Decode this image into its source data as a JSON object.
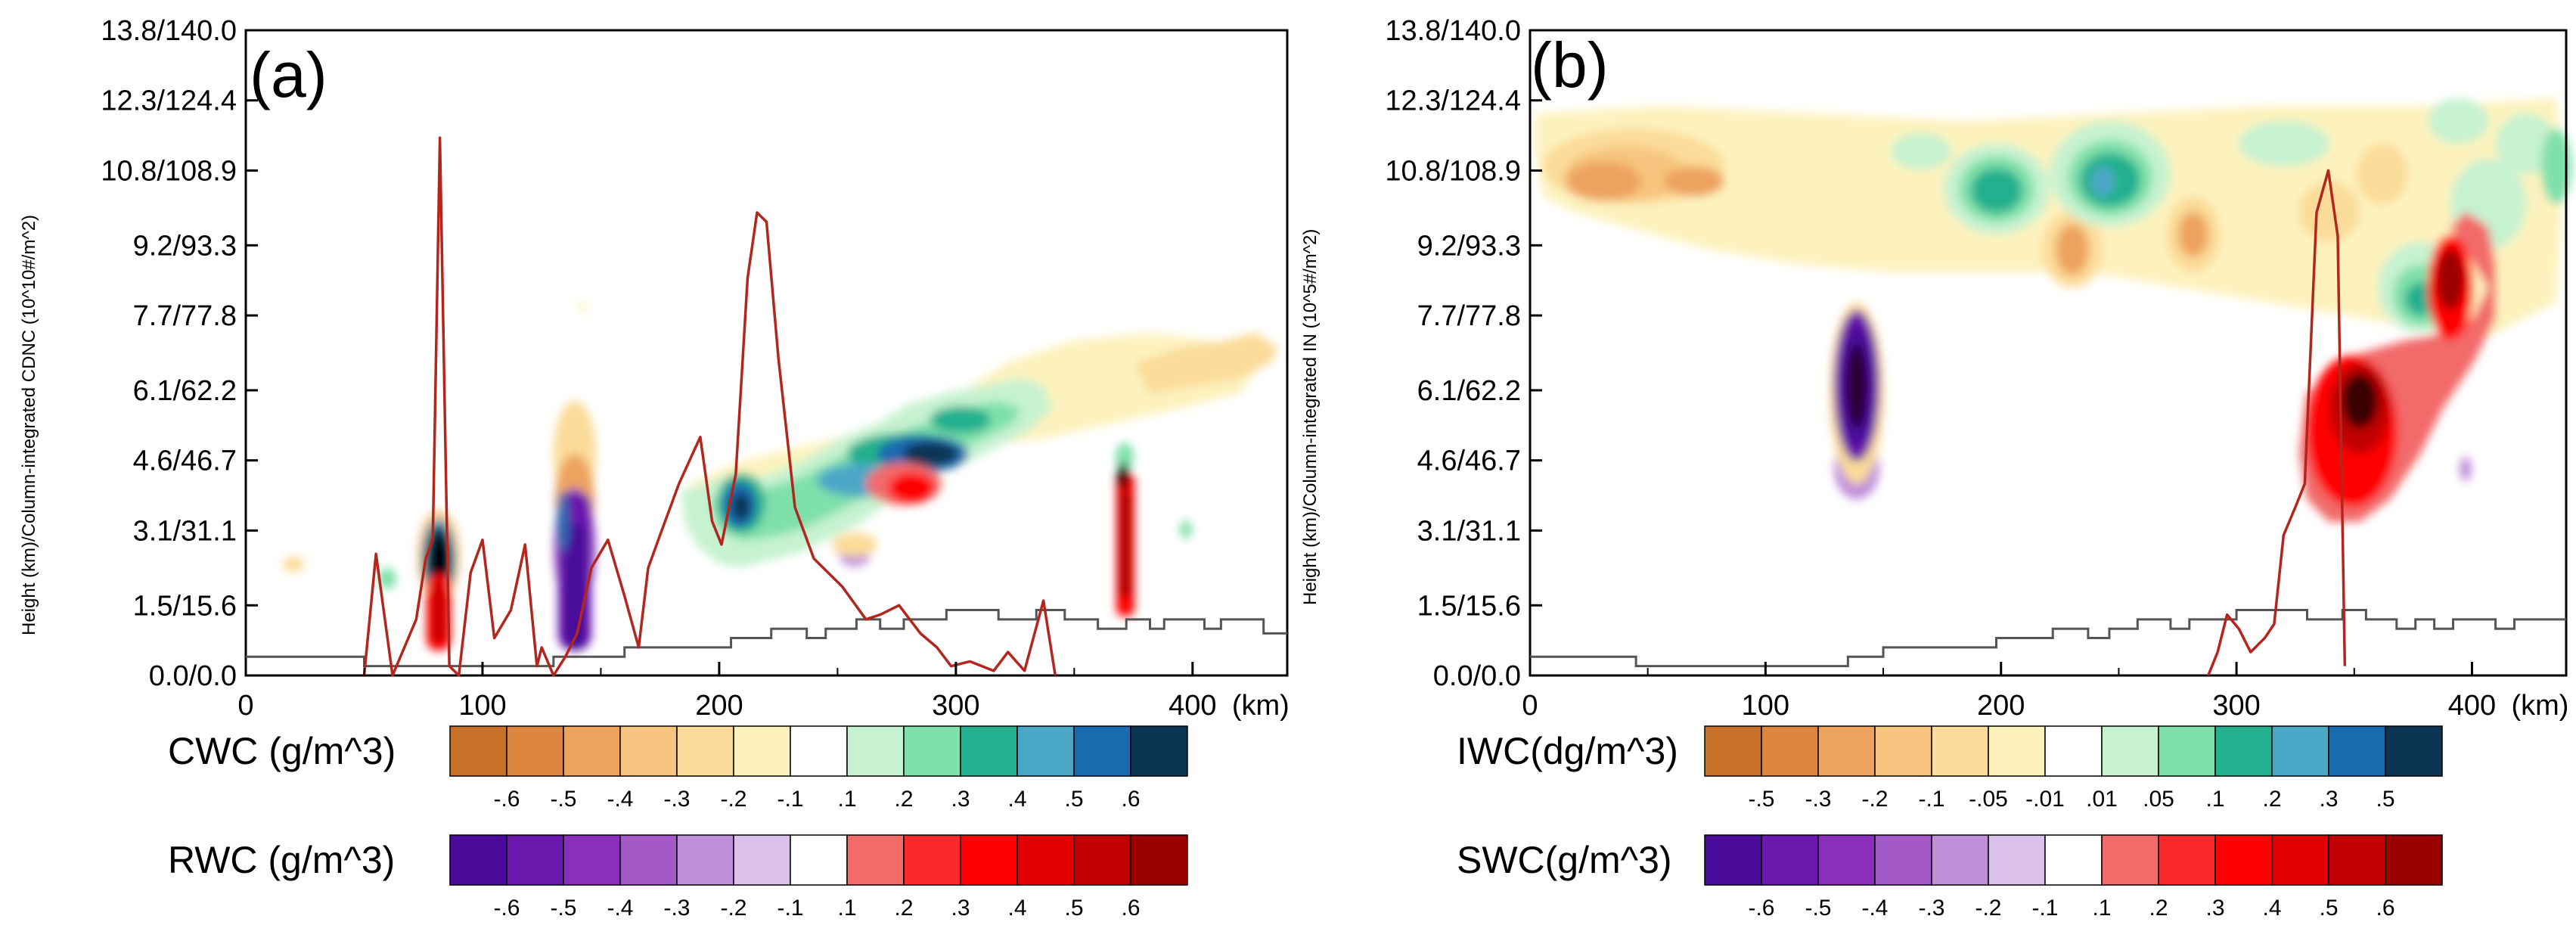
{
  "chart_data": [
    {
      "type": "contour",
      "panel_label": "(a)",
      "ylabel": "Height (km)/Column-integrated CDNC (10^10#/m^2)",
      "xlabel_unit": "(km)",
      "xlim": [
        0,
        440
      ],
      "x_ticks": [
        "0",
        "100",
        "200",
        "300",
        "400"
      ],
      "y_ticks": [
        "0.0/0.0",
        "1.5/15.6",
        "3.1/31.1",
        "4.6/46.7",
        "6.1/62.2",
        "7.7/77.8",
        "9.2/93.3",
        "10.8/108.9",
        "12.3/124.4",
        "13.8/140.0"
      ],
      "line_series": {
        "name": "Column-integrated CDNC",
        "color": "#b3261e",
        "points": [
          [
            50,
            0
          ],
          [
            55,
            2.6
          ],
          [
            62,
            0
          ],
          [
            72,
            1.2
          ],
          [
            76,
            2.5
          ],
          [
            79,
            2.9
          ],
          [
            82,
            11.5
          ],
          [
            86,
            0.2
          ],
          [
            90,
            0
          ],
          [
            95,
            2.2
          ],
          [
            100,
            2.9
          ],
          [
            105,
            0.8
          ],
          [
            112,
            1.4
          ],
          [
            118,
            2.8
          ],
          [
            123,
            0.2
          ],
          [
            125,
            0.6
          ],
          [
            130,
            0
          ],
          [
            135,
            0.4
          ],
          [
            140,
            0.9
          ],
          [
            146,
            2.3
          ],
          [
            153,
            2.9
          ],
          [
            160,
            1.7
          ],
          [
            166,
            0.6
          ],
          [
            170,
            2.3
          ],
          [
            175,
            3.0
          ],
          [
            183,
            4.1
          ],
          [
            192,
            5.1
          ],
          [
            197,
            3.3
          ],
          [
            201,
            2.8
          ],
          [
            207,
            4.3
          ],
          [
            212,
            8.5
          ],
          [
            216,
            9.9
          ],
          [
            220,
            9.7
          ],
          [
            225,
            6.8
          ],
          [
            232,
            3.6
          ],
          [
            240,
            2.5
          ],
          [
            252,
            1.9
          ],
          [
            262,
            1.2
          ],
          [
            268,
            1.3
          ],
          [
            276,
            1.5
          ],
          [
            285,
            0.9
          ],
          [
            292,
            0.6
          ],
          [
            298,
            0.2
          ],
          [
            306,
            0.3
          ],
          [
            316,
            0.1
          ],
          [
            322,
            0.5
          ],
          [
            329,
            0.1
          ],
          [
            337,
            1.6
          ],
          [
            342,
            0
          ]
        ]
      },
      "terrain": {
        "name": "Terrain height",
        "points": [
          [
            0,
            0.4
          ],
          [
            50,
            0.4
          ],
          [
            50,
            0.2
          ],
          [
            130,
            0.2
          ],
          [
            130,
            0.4
          ],
          [
            160,
            0.4
          ],
          [
            160,
            0.6
          ],
          [
            205,
            0.6
          ],
          [
            205,
            0.8
          ],
          [
            222,
            0.8
          ],
          [
            222,
            1.0
          ],
          [
            237,
            1.0
          ],
          [
            237,
            0.8
          ],
          [
            245,
            0.8
          ],
          [
            245,
            1.0
          ],
          [
            258,
            1.0
          ],
          [
            258,
            1.2
          ],
          [
            268,
            1.2
          ],
          [
            268,
            1.0
          ],
          [
            278,
            1.0
          ],
          [
            278,
            1.2
          ],
          [
            296,
            1.2
          ],
          [
            296,
            1.4
          ],
          [
            318,
            1.4
          ],
          [
            318,
            1.2
          ],
          [
            334,
            1.2
          ],
          [
            334,
            1.4
          ],
          [
            346,
            1.4
          ],
          [
            346,
            1.2
          ],
          [
            360,
            1.2
          ],
          [
            360,
            1.0
          ],
          [
            372,
            1.0
          ],
          [
            372,
            1.2
          ],
          [
            382,
            1.2
          ],
          [
            382,
            1.0
          ],
          [
            388,
            1.0
          ],
          [
            388,
            1.2
          ],
          [
            405,
            1.2
          ],
          [
            405,
            1.0
          ],
          [
            412,
            1.0
          ],
          [
            412,
            1.2
          ],
          [
            430,
            1.2
          ],
          [
            430,
            0.9
          ],
          [
            440,
            0.9
          ]
        ]
      },
      "colorbars": [
        {
          "title": "CWC (g/m^3)",
          "colors": [
            "#c8712a",
            "#db853f",
            "#eda35e",
            "#f6c47e",
            "#fbdb99",
            "#fdf2bd",
            "#ffffff",
            "#c6f2d0",
            "#7fe0aa",
            "#22b08e",
            "#4ba7c6",
            "#1a6ab0",
            "#0a3553"
          ],
          "labels": [
            "-.6",
            "-.5",
            "-.4",
            "-.3",
            "-.2",
            "-.1",
            ".1",
            ".2",
            ".3",
            ".4",
            ".5",
            ".6"
          ]
        },
        {
          "title": "RWC (g/m^3)",
          "colors": [
            "#4a0a9a",
            "#6a17ad",
            "#8a2fbc",
            "#a35ac8",
            "#c08fd9",
            "#dbc0ea",
            "#ffffff",
            "#f26a6a",
            "#fb2a2a",
            "#ff0000",
            "#e00000",
            "#c00000",
            "#9a0000"
          ],
          "labels": [
            "-.6",
            "-.5",
            "-.4",
            "-.3",
            "-.2",
            "-.1",
            ".1",
            ".2",
            ".3",
            ".4",
            ".5",
            ".6"
          ]
        }
      ]
    },
    {
      "type": "contour",
      "panel_label": "(b)",
      "ylabel": "Height (km)/Column-integrated IN (10^5#/m^2)",
      "xlabel_unit": "(km)",
      "xlim": [
        0,
        440
      ],
      "x_ticks": [
        "0",
        "100",
        "200",
        "300",
        "400"
      ],
      "y_ticks": [
        "0.0/0.0",
        "1.5/15.6",
        "3.1/31.1",
        "4.6/46.7",
        "6.1/62.2",
        "7.7/77.8",
        "9.2/93.3",
        "10.8/108.9",
        "12.3/124.4",
        "13.8/140.0"
      ],
      "line_series": {
        "name": "Column-integrated IN",
        "color": "#b3261e",
        "points": [
          [
            288,
            0
          ],
          [
            292,
            0.5
          ],
          [
            296,
            1.3
          ],
          [
            301,
            1.0
          ],
          [
            306,
            0.5
          ],
          [
            312,
            0.8
          ],
          [
            316,
            1.1
          ],
          [
            320,
            3.0
          ],
          [
            325,
            3.6
          ],
          [
            329,
            4.1
          ],
          [
            334,
            9.9
          ],
          [
            339,
            10.8
          ],
          [
            343,
            9.4
          ],
          [
            346,
            0.2
          ]
        ]
      },
      "terrain": {
        "name": "Terrain height",
        "points": [
          [
            0,
            0.4
          ],
          [
            45,
            0.4
          ],
          [
            45,
            0.2
          ],
          [
            135,
            0.2
          ],
          [
            135,
            0.4
          ],
          [
            150,
            0.4
          ],
          [
            150,
            0.6
          ],
          [
            198,
            0.6
          ],
          [
            198,
            0.8
          ],
          [
            222,
            0.8
          ],
          [
            222,
            1.0
          ],
          [
            237,
            1.0
          ],
          [
            237,
            0.8
          ],
          [
            246,
            0.8
          ],
          [
            246,
            1.0
          ],
          [
            258,
            1.0
          ],
          [
            258,
            1.2
          ],
          [
            272,
            1.2
          ],
          [
            272,
            1.0
          ],
          [
            280,
            1.0
          ],
          [
            280,
            1.2
          ],
          [
            300,
            1.2
          ],
          [
            300,
            1.4
          ],
          [
            330,
            1.4
          ],
          [
            330,
            1.2
          ],
          [
            345,
            1.2
          ],
          [
            345,
            1.4
          ],
          [
            355,
            1.4
          ],
          [
            355,
            1.2
          ],
          [
            368,
            1.2
          ],
          [
            368,
            1.0
          ],
          [
            376,
            1.0
          ],
          [
            376,
            1.2
          ],
          [
            384,
            1.2
          ],
          [
            384,
            1.0
          ],
          [
            392,
            1.0
          ],
          [
            392,
            1.2
          ],
          [
            410,
            1.2
          ],
          [
            410,
            1.0
          ],
          [
            418,
            1.0
          ],
          [
            418,
            1.2
          ],
          [
            440,
            1.2
          ]
        ]
      },
      "colorbars": [
        {
          "title": "IWC(dg/m^3)",
          "colors": [
            "#c8712a",
            "#db853f",
            "#eda35e",
            "#f6c47e",
            "#fbdb99",
            "#fdf2bd",
            "#ffffff",
            "#c6f2d0",
            "#7fe0aa",
            "#22b08e",
            "#4ba7c6",
            "#1a6ab0",
            "#0a3553"
          ],
          "labels": [
            "-.5",
            "-.3",
            "-.2",
            "-.1",
            "-.05",
            "-.01",
            ".01",
            ".05",
            ".1",
            ".2",
            ".3",
            ".5"
          ]
        },
        {
          "title": "SWC(g/m^3)",
          "colors": [
            "#4a0a9a",
            "#6a17ad",
            "#8a2fbc",
            "#a35ac8",
            "#c08fd9",
            "#dbc0ea",
            "#ffffff",
            "#f26a6a",
            "#fb2a2a",
            "#ff0000",
            "#e00000",
            "#c00000",
            "#9a0000"
          ],
          "labels": [
            "-.6",
            "-.5",
            "-.4",
            "-.3",
            "-.2",
            "-.1",
            ".1",
            ".2",
            ".3",
            ".4",
            ".5",
            ".6"
          ]
        }
      ]
    }
  ]
}
